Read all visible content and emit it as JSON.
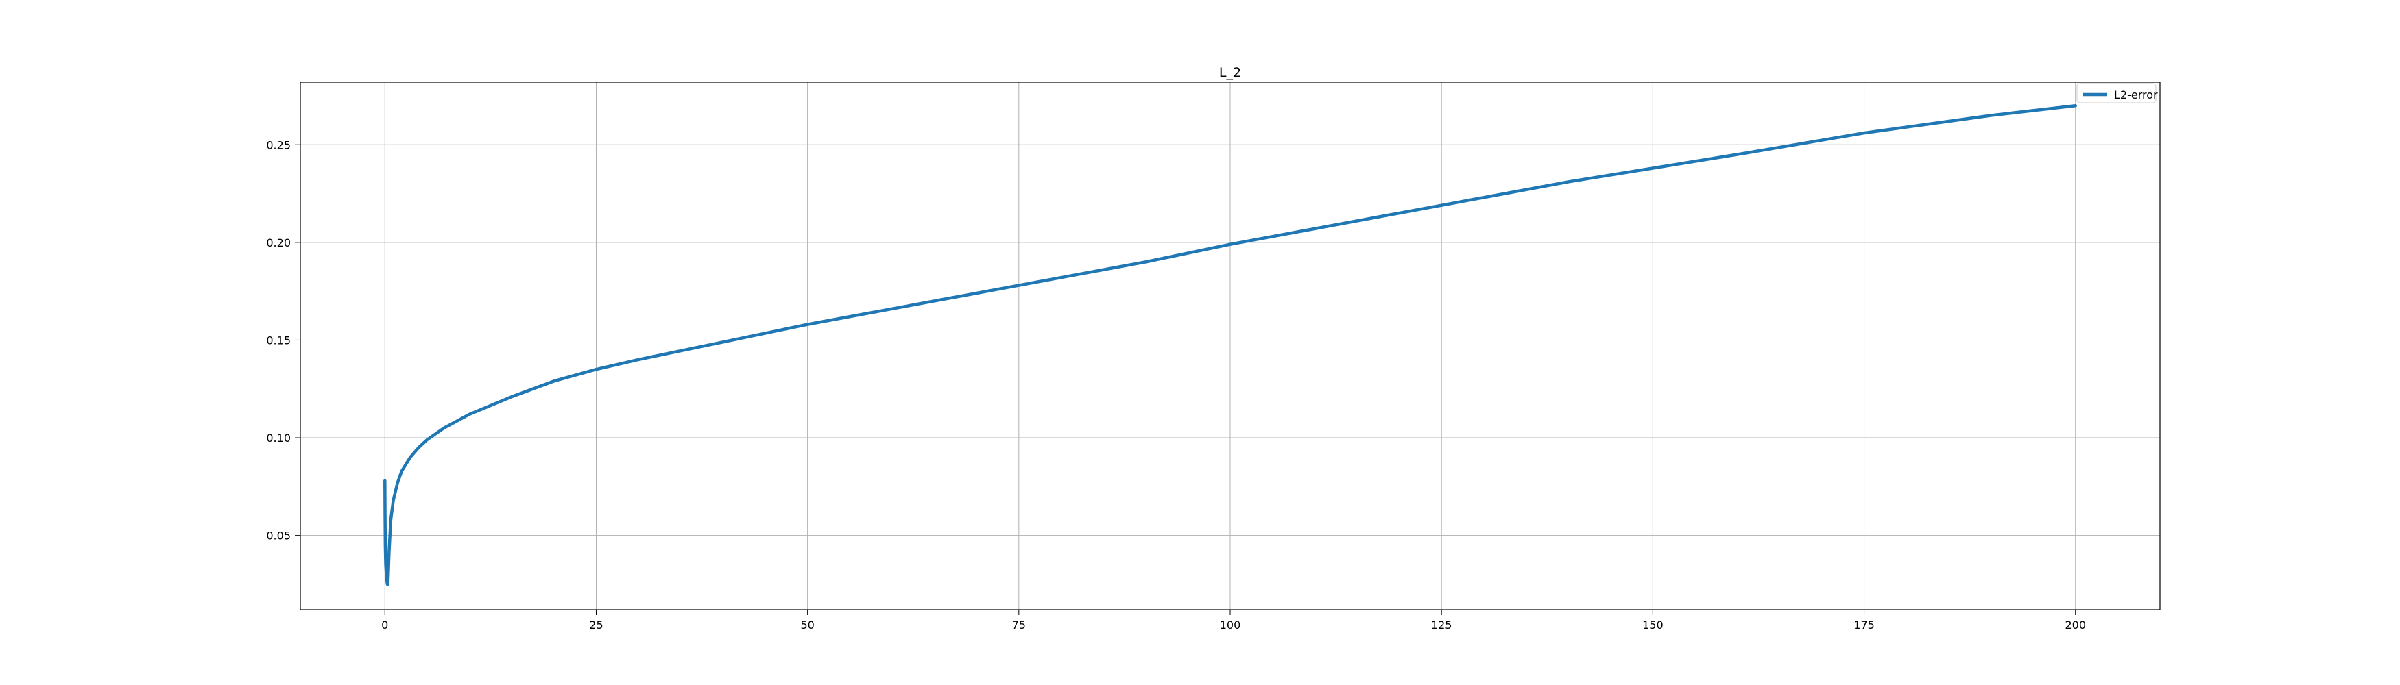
{
  "chart_data": {
    "type": "line",
    "title": "L_2",
    "xlabel": "",
    "ylabel": "",
    "xlim": [
      -10,
      210
    ],
    "ylim": [
      0.012,
      0.282
    ],
    "grid": true,
    "legend_position": "top-right",
    "x_ticks": [
      0,
      25,
      50,
      75,
      100,
      125,
      150,
      175,
      200
    ],
    "x_tick_labels": [
      "0",
      "25",
      "50",
      "75",
      "100",
      "125",
      "150",
      "175",
      "200"
    ],
    "y_ticks": [
      0.05,
      0.1,
      0.15,
      0.2,
      0.25
    ],
    "y_tick_labels": [
      "0.05",
      "0.10",
      "0.15",
      "0.20",
      "0.25"
    ],
    "series": [
      {
        "name": "L2-error",
        "color": "#1f77b4",
        "x": [
          0,
          0.02,
          0.05,
          0.1,
          0.2,
          0.3,
          0.35,
          0.4,
          0.5,
          0.7,
          1,
          1.5,
          2,
          3,
          4,
          5,
          7,
          10,
          15,
          20,
          25,
          30,
          40,
          50,
          60,
          75,
          90,
          100,
          110,
          125,
          140,
          150,
          160,
          175,
          190,
          200
        ],
        "y": [
          0.078,
          0.062,
          0.045,
          0.035,
          0.028,
          0.025,
          0.025,
          0.03,
          0.042,
          0.058,
          0.068,
          0.077,
          0.083,
          0.09,
          0.095,
          0.099,
          0.105,
          0.112,
          0.121,
          0.129,
          0.135,
          0.14,
          0.149,
          0.158,
          0.166,
          0.178,
          0.19,
          0.199,
          0.207,
          0.219,
          0.231,
          0.238,
          0.245,
          0.256,
          0.265,
          0.27
        ]
      }
    ]
  }
}
